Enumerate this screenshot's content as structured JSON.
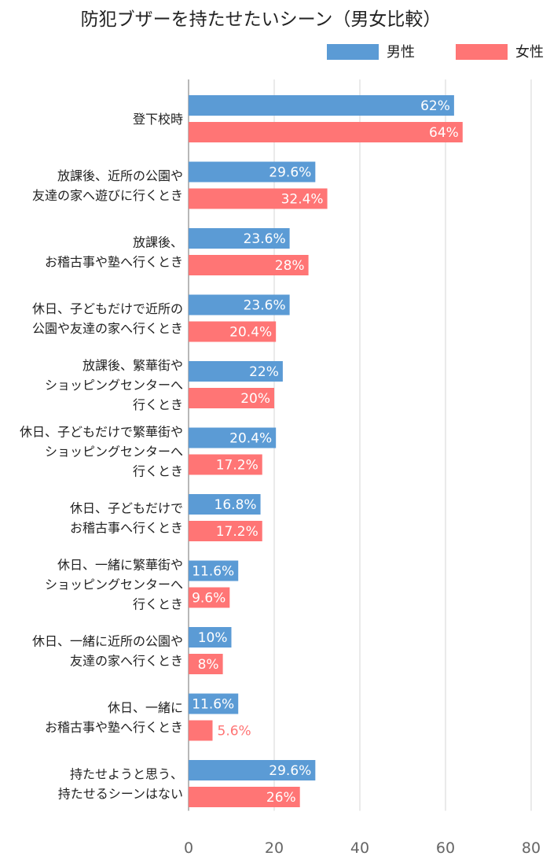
{
  "chart_data": {
    "type": "bar",
    "orientation": "horizontal",
    "title": "防犯ブザーを持たせたいシーン（男女比較）",
    "legend_position": "top-right",
    "grid": true,
    "xlim": [
      0,
      80
    ],
    "xticks": [
      "0",
      "20",
      "40",
      "60",
      "80"
    ],
    "categories": [
      [
        "登下校時"
      ],
      [
        "放課後、近所の公園や",
        "友達の家へ遊びに行くとき"
      ],
      [
        "放課後、",
        "お稽古事や塾へ行くとき"
      ],
      [
        "休日、子どもだけで近所の",
        "公園や友達の家へ行くとき"
      ],
      [
        "放課後、繁華街や",
        "ショッピングセンターへ",
        "行くとき"
      ],
      [
        "休日、子どもだけで繁華街や",
        "ショッピングセンターへ",
        "行くとき"
      ],
      [
        "休日、子どもだけで",
        "お稽古事へ行くとき"
      ],
      [
        "休日、一緒に繁華街や",
        "ショッピングセンターへ",
        "行くとき"
      ],
      [
        "休日、一緒に近所の公園や",
        "友達の家へ行くとき"
      ],
      [
        "休日、一緒に",
        "お稽古事や塾へ行くとき"
      ],
      [
        "持たせようと思う、",
        "持たせるシーンはない"
      ]
    ],
    "series": [
      {
        "name": "男性",
        "color": "#5b9bd5",
        "values": [
          62,
          29.6,
          23.6,
          23.6,
          22,
          20.4,
          16.8,
          11.6,
          10,
          11.6,
          29.6
        ],
        "labels": [
          "62%",
          "29.6%",
          "23.6%",
          "23.6%",
          "22%",
          "20.4%",
          "16.8%",
          "11.6%",
          "10%",
          "11.6%",
          "29.6%"
        ]
      },
      {
        "name": "女性",
        "color": "#ff7575",
        "values": [
          64,
          32.4,
          28,
          20.4,
          20,
          17.2,
          17.2,
          9.6,
          8,
          5.6,
          26
        ],
        "labels": [
          "64%",
          "32.4%",
          "28%",
          "20.4%",
          "20%",
          "17.2%",
          "17.2%",
          "9.6%",
          "8%",
          "5.6%",
          "26%"
        ]
      }
    ]
  }
}
